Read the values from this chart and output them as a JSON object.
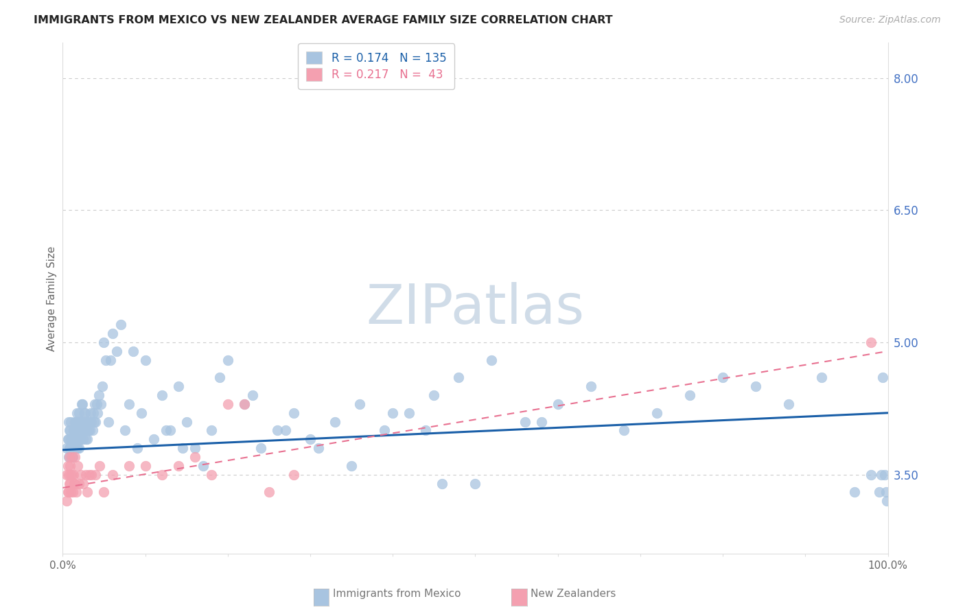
{
  "title": "IMMIGRANTS FROM MEXICO VS NEW ZEALANDER AVERAGE FAMILY SIZE CORRELATION CHART",
  "source": "Source: ZipAtlas.com",
  "ylabel": "Average Family Size",
  "r_mexico": 0.174,
  "n_mexico": 135,
  "r_nz": 0.217,
  "n_nz": 43,
  "legend_label_mexico": "Immigrants from Mexico",
  "legend_label_nz": "New Zealanders",
  "yticks": [
    3.5,
    5.0,
    6.5,
    8.0
  ],
  "ylim": [
    2.6,
    8.4
  ],
  "xlim": [
    0.0,
    1.0
  ],
  "color_mexico": "#a8c4e0",
  "color_nz": "#f4a0b0",
  "line_color_mexico": "#1a5fa8",
  "line_color_nz": "#e87090",
  "bg_color": "#ffffff",
  "grid_color": "#cccccc",
  "title_color": "#222222",
  "right_axis_color": "#4472c4",
  "watermark_color": "#d0dce8",
  "watermark_text": "ZIPatlas",
  "mexico_slope": 0.42,
  "mexico_intercept": 3.78,
  "nz_slope": 1.55,
  "nz_intercept": 3.35,
  "mexico_x": [
    0.005,
    0.006,
    0.007,
    0.007,
    0.007,
    0.008,
    0.008,
    0.009,
    0.009,
    0.01,
    0.01,
    0.01,
    0.011,
    0.011,
    0.012,
    0.012,
    0.013,
    0.013,
    0.014,
    0.014,
    0.015,
    0.015,
    0.015,
    0.016,
    0.016,
    0.016,
    0.017,
    0.017,
    0.017,
    0.018,
    0.018,
    0.018,
    0.019,
    0.019,
    0.02,
    0.02,
    0.02,
    0.021,
    0.021,
    0.022,
    0.022,
    0.023,
    0.023,
    0.024,
    0.024,
    0.025,
    0.025,
    0.026,
    0.026,
    0.027,
    0.027,
    0.028,
    0.028,
    0.029,
    0.03,
    0.03,
    0.031,
    0.032,
    0.033,
    0.034,
    0.035,
    0.036,
    0.037,
    0.038,
    0.039,
    0.04,
    0.041,
    0.042,
    0.044,
    0.046,
    0.048,
    0.05,
    0.052,
    0.055,
    0.058,
    0.06,
    0.065,
    0.07,
    0.075,
    0.08,
    0.085,
    0.09,
    0.095,
    0.1,
    0.11,
    0.12,
    0.13,
    0.14,
    0.15,
    0.16,
    0.18,
    0.2,
    0.22,
    0.24,
    0.26,
    0.28,
    0.3,
    0.33,
    0.36,
    0.39,
    0.42,
    0.45,
    0.48,
    0.52,
    0.56,
    0.6,
    0.64,
    0.68,
    0.72,
    0.76,
    0.8,
    0.84,
    0.88,
    0.92,
    0.96,
    0.98,
    0.99,
    0.992,
    0.994,
    0.996,
    0.998,
    0.999,
    0.58,
    0.5,
    0.46,
    0.44,
    0.4,
    0.35,
    0.31,
    0.27,
    0.23,
    0.19,
    0.17,
    0.145,
    0.125
  ],
  "mexico_y": [
    3.8,
    3.9,
    3.7,
    3.9,
    4.1,
    3.8,
    4.0,
    3.8,
    4.0,
    3.7,
    3.9,
    4.1,
    3.7,
    3.9,
    3.7,
    3.9,
    3.8,
    4.0,
    3.8,
    4.0,
    3.8,
    3.9,
    4.1,
    3.8,
    3.9,
    4.1,
    3.8,
    4.0,
    4.2,
    3.8,
    3.9,
    4.1,
    3.9,
    4.1,
    3.8,
    4.0,
    4.2,
    3.9,
    4.1,
    3.9,
    4.1,
    4.3,
    4.0,
    4.1,
    4.3,
    3.9,
    4.1,
    4.0,
    4.2,
    4.0,
    4.2,
    3.9,
    4.1,
    4.0,
    3.9,
    4.1,
    4.0,
    4.1,
    4.0,
    4.2,
    4.1,
    4.0,
    4.2,
    4.1,
    4.3,
    4.1,
    4.3,
    4.2,
    4.4,
    4.3,
    4.5,
    5.0,
    4.8,
    4.1,
    4.8,
    5.1,
    4.9,
    5.2,
    4.0,
    4.3,
    4.9,
    3.8,
    4.2,
    4.8,
    3.9,
    4.4,
    4.0,
    4.5,
    4.1,
    3.8,
    4.0,
    4.8,
    4.3,
    3.8,
    4.0,
    4.2,
    3.9,
    4.1,
    4.3,
    4.0,
    4.2,
    4.4,
    4.6,
    4.8,
    4.1,
    4.3,
    4.5,
    4.0,
    4.2,
    4.4,
    4.6,
    4.5,
    4.3,
    4.6,
    3.3,
    3.5,
    3.3,
    3.5,
    4.6,
    3.5,
    3.3,
    3.2,
    4.1,
    3.4,
    3.4,
    4.0,
    4.2,
    3.6,
    3.8,
    4.0,
    4.4,
    4.6,
    3.6,
    3.8,
    4.0
  ],
  "nz_x": [
    0.005,
    0.005,
    0.006,
    0.006,
    0.007,
    0.007,
    0.008,
    0.008,
    0.009,
    0.009,
    0.01,
    0.01,
    0.011,
    0.011,
    0.012,
    0.013,
    0.014,
    0.015,
    0.015,
    0.016,
    0.018,
    0.02,
    0.022,
    0.025,
    0.028,
    0.03,
    0.032,
    0.035,
    0.04,
    0.045,
    0.05,
    0.06,
    0.08,
    0.1,
    0.12,
    0.14,
    0.16,
    0.18,
    0.2,
    0.22,
    0.25,
    0.28,
    0.98
  ],
  "nz_y": [
    3.2,
    3.5,
    3.3,
    3.6,
    3.3,
    3.5,
    3.4,
    3.7,
    3.4,
    3.6,
    3.3,
    3.5,
    3.5,
    3.7,
    3.3,
    3.5,
    3.4,
    3.4,
    3.7,
    3.3,
    3.6,
    3.4,
    3.5,
    3.4,
    3.5,
    3.3,
    3.5,
    3.5,
    3.5,
    3.6,
    3.3,
    3.5,
    3.6,
    3.6,
    3.5,
    3.6,
    3.7,
    3.5,
    4.3,
    4.3,
    3.3,
    3.5,
    5.0
  ]
}
